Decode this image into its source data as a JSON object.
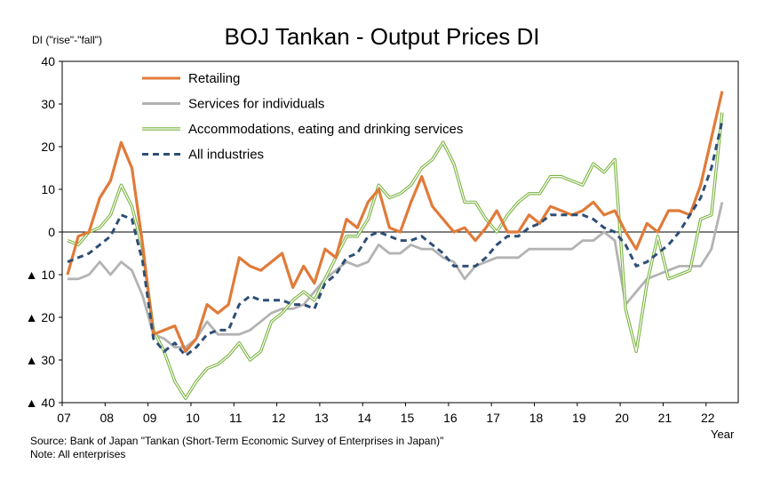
{
  "chart_data": {
    "type": "line",
    "title": "BOJ Tankan - Output Prices DI",
    "ylabel": "DI (\"rise\"-\"fall\")",
    "xlabel": "Year",
    "ylim": [
      -40,
      40
    ],
    "yticks": [
      40,
      30,
      20,
      10,
      0,
      -10,
      -20,
      -30,
      -40
    ],
    "ytick_labels": [
      "40",
      "30",
      "20",
      "10",
      "0",
      "▲ 10",
      "▲ 20",
      "▲ 30",
      "▲ 40"
    ],
    "xtick_labels": [
      "07",
      "08",
      "09",
      "10",
      "11",
      "12",
      "13",
      "14",
      "15",
      "16",
      "17",
      "18",
      "19",
      "20",
      "21",
      "22"
    ],
    "x_start": "2007Q1",
    "frequency": "quarterly",
    "grid": false,
    "legend_position": "top-left inside",
    "series": [
      {
        "name": "Retailing",
        "color": "#E07B39",
        "style": "solid-thick",
        "values": [
          -10,
          -1,
          0,
          8,
          12,
          21,
          15,
          -3,
          -24,
          -23,
          -22,
          -28,
          -25,
          -17,
          -19,
          -17,
          -6,
          -8,
          -9,
          -7,
          -5,
          -13,
          -8,
          -12,
          -4,
          -6,
          3,
          1,
          7,
          10,
          1,
          0,
          7,
          13,
          6,
          3,
          0,
          1,
          -2,
          1,
          5,
          0,
          0,
          4,
          2,
          6,
          5,
          4,
          5,
          7,
          4,
          5,
          0,
          -4,
          2,
          0,
          5,
          5,
          4,
          11,
          22,
          33
        ]
      },
      {
        "name": "Services for individuals",
        "color": "#B3B3B3",
        "style": "solid",
        "values": [
          -11,
          -11,
          -10,
          -7,
          -10,
          -7,
          -9,
          -15,
          -24,
          -25,
          -27,
          -27,
          -25,
          -21,
          -24,
          -24,
          -24,
          -23,
          -21,
          -19,
          -18,
          -18,
          -17,
          -14,
          -11,
          -9,
          -7,
          -8,
          -7,
          -3,
          -5,
          -5,
          -3,
          -4,
          -4,
          -6,
          -7,
          -11,
          -8,
          -7,
          -6,
          -6,
          -6,
          -4,
          -4,
          -4,
          -4,
          -4,
          -2,
          -2,
          0,
          -2,
          -17,
          -14,
          -11,
          -10,
          -9,
          -8,
          -8,
          -8,
          -4,
          7
        ]
      },
      {
        "name": "Accommodations, eating and drinking services",
        "color": "#7CB342",
        "style": "double-green",
        "values": [
          -2,
          -3,
          0,
          1,
          4,
          11,
          6,
          -4,
          -23,
          -28,
          -35,
          -39,
          -35,
          -32,
          -31,
          -29,
          -26,
          -30,
          -28,
          -21,
          -19,
          -16,
          -14,
          -16,
          -11,
          -6,
          -1,
          -1,
          3,
          11,
          8,
          9,
          11,
          15,
          17,
          21,
          16,
          7,
          7,
          3,
          0,
          4,
          7,
          9,
          9,
          13,
          13,
          12,
          11,
          16,
          14,
          17,
          -18,
          -28,
          -12,
          -1,
          -11,
          -10,
          -9,
          3,
          4,
          28
        ]
      },
      {
        "name": "All industries",
        "color": "#2E4F75",
        "style": "dashed",
        "values": [
          -7,
          -6,
          -5,
          -3,
          -1,
          4,
          3,
          -7,
          -25,
          -28,
          -26,
          -29,
          -27,
          -24,
          -23,
          -23,
          -17,
          -15,
          -16,
          -16,
          -16,
          -17,
          -17,
          -18,
          -12,
          -10,
          -6,
          -5,
          -1,
          0,
          -1,
          -2,
          -2,
          -1,
          -3,
          -5,
          -8,
          -8,
          -8,
          -6,
          -3,
          -1,
          -1,
          1,
          2,
          4,
          4,
          4,
          4,
          3,
          1,
          0,
          -3,
          -8,
          -7,
          -5,
          -3,
          0,
          4,
          8,
          15,
          26
        ]
      }
    ]
  },
  "notes": {
    "source": "Source: Bank of Japan \"Tankan (Short-Term Economic Survey of Enterprises in Japan)\"",
    "note": "Note: All enterprises"
  }
}
